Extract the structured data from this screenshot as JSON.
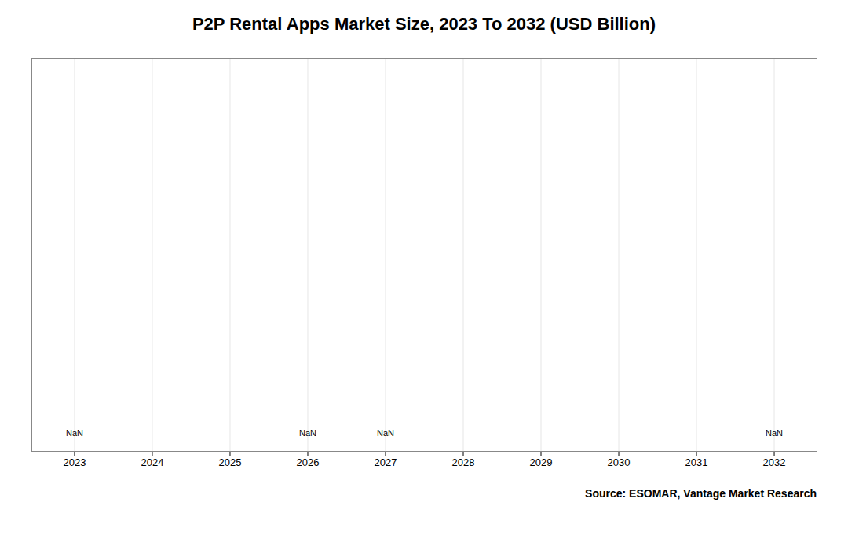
{
  "chart_data": {
    "type": "line",
    "title": "P2P Rental Apps Market Size, 2023 To 2032 (USD Billion)",
    "source": "Source: ESOMAR, Vantage Market Research",
    "xlim": [
      2022.45,
      2032.55
    ],
    "xticks": [
      2023,
      2024,
      2025,
      2026,
      2027,
      2028,
      2029,
      2030,
      2031,
      2032
    ],
    "ylim": [
      0,
      1
    ],
    "grid": true,
    "tick_labels": "x",
    "annotations": [
      {
        "text": "NaN",
        "x": 2023,
        "y": 0.04
      },
      {
        "text": "NaN",
        "x": 2026,
        "y": 0.04
      },
      {
        "text": "NaN",
        "x": 2027,
        "y": 0.04
      },
      {
        "text": "NaN",
        "x": 2032,
        "y": 0.04
      }
    ]
  }
}
